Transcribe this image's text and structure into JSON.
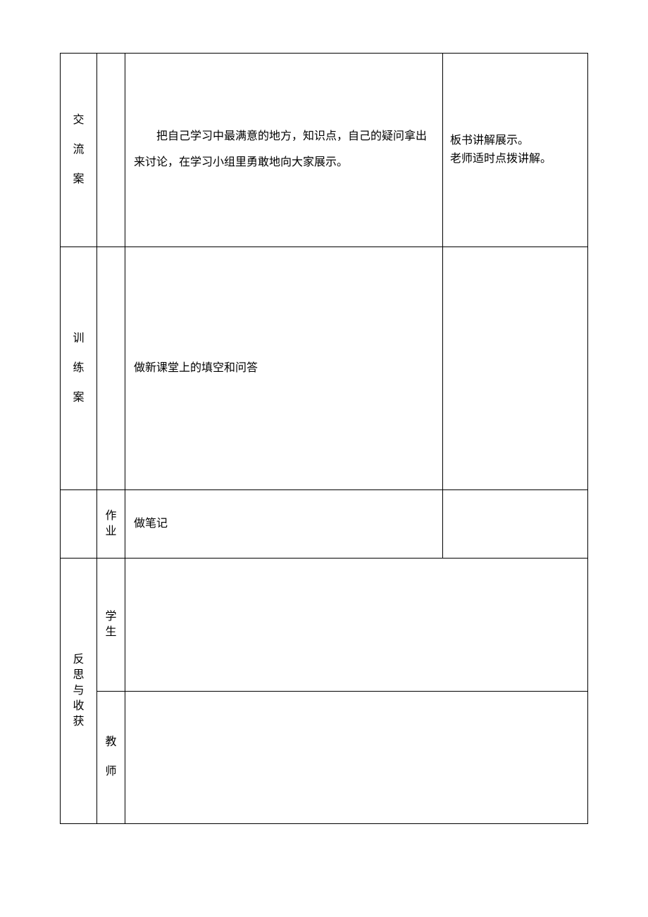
{
  "table": {
    "rows": [
      {
        "label_chars": [
          "交",
          "流",
          "案"
        ],
        "col2": "",
        "content": "把自己学习中最满意的地方，知识点，自己的疑问拿出来讨论，在学习小组里勇敢地向大家展示。",
        "note_line1": "板书讲解展示。",
        "note_line2": "老师适时点拨讲解。"
      },
      {
        "label_chars": [
          "训",
          "练",
          "案"
        ],
        "col2": "",
        "content": "做新课堂上的填空和问答",
        "note": ""
      },
      {
        "label": "",
        "col2_chars": [
          "作",
          "业"
        ],
        "content": "做笔记",
        "note": ""
      }
    ],
    "reflection": {
      "label_chars": [
        "反",
        "思",
        "与",
        "收",
        "获"
      ],
      "subrows": [
        {
          "col2_chars": [
            "学",
            "生"
          ],
          "content": ""
        },
        {
          "col2_chars": [
            "教",
            "师"
          ],
          "content": ""
        }
      ]
    }
  },
  "styles": {
    "border_color": "#000000",
    "background_color": "#ffffff",
    "font_family": "SimSun",
    "body_fontsize": 16,
    "line_height_wide": 2.3,
    "line_height_normal": 1.6
  }
}
